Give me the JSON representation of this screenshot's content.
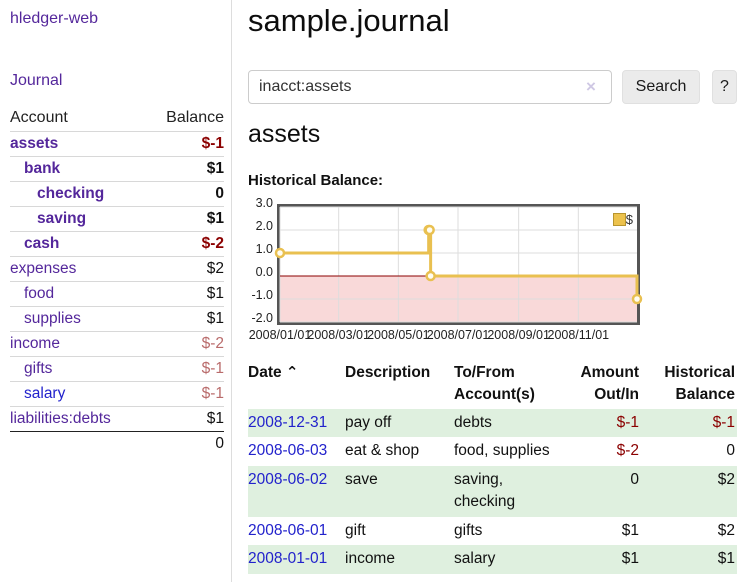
{
  "app": {
    "title": "hledger-web",
    "nav": {
      "journal": "Journal"
    }
  },
  "colors": {
    "purple_link": "#54279b",
    "blue_link": "#2222cc",
    "negative_strong": "#8b0000",
    "negative_muted": "#b96b6b",
    "row_stripe_green": "#dff0df",
    "chart_line_gold": "#e9c050",
    "chart_negative_fill": "#f9d9d9",
    "chart_zero_line": "#8b0000",
    "chart_border": "#555555"
  },
  "sidebar": {
    "headers": {
      "account": "Account",
      "balance": "Balance"
    },
    "accounts": [
      {
        "name": "assets",
        "balance": "$-1",
        "level": 1,
        "matched": true
      },
      {
        "name": "bank",
        "balance": "$1",
        "level": 2,
        "matched": true
      },
      {
        "name": "checking",
        "balance": "0",
        "level": 3,
        "matched": true
      },
      {
        "name": "saving",
        "balance": "$1",
        "level": 3,
        "matched": true
      },
      {
        "name": "cash",
        "balance": "$-2",
        "level": 2,
        "matched": true
      },
      {
        "name": "expenses",
        "balance": "$2",
        "level": 1,
        "matched": false
      },
      {
        "name": "food",
        "balance": "$1",
        "level": 2,
        "matched": false
      },
      {
        "name": "supplies",
        "balance": "$1",
        "level": 2,
        "matched": false
      },
      {
        "name": "income",
        "balance": "$-2",
        "level": 1,
        "matched": false
      },
      {
        "name": "gifts",
        "balance": "$-1",
        "level": 2,
        "matched": false
      },
      {
        "name": "salary",
        "balance": "$-1",
        "level": 2,
        "matched": false
      },
      {
        "name": "liabilities:debts",
        "balance": "$1",
        "level": 1,
        "matched": false
      }
    ],
    "total": "0"
  },
  "main": {
    "title": "sample.journal",
    "search": {
      "value": "inacct:assets",
      "clear_icon": "×",
      "button_label": "Search",
      "help_label": "?"
    },
    "account_heading": "assets",
    "chart_title": "Historical Balance:"
  },
  "chart_data": {
    "type": "line",
    "step": true,
    "title": "Historical Balance",
    "series": [
      {
        "name": "$",
        "points": [
          [
            "2008-01-01",
            1
          ],
          [
            "2008-06-01",
            2
          ],
          [
            "2008-06-02",
            2
          ],
          [
            "2008-06-03",
            0
          ],
          [
            "2008-12-31",
            -1
          ]
        ]
      }
    ],
    "xlim": [
      "2008-01-01",
      "2008-12-31"
    ],
    "ylim": [
      -2,
      3
    ],
    "x_ticks": [
      {
        "date": "2008-01-01",
        "label": "2008/01/01"
      },
      {
        "date": "2008-03-01",
        "label": "2008/03/01"
      },
      {
        "date": "2008-05-01",
        "label": "2008/05/01"
      },
      {
        "date": "2008-07-01",
        "label": "2008/07/01"
      },
      {
        "date": "2008-09-01",
        "label": "2008/09/01"
      },
      {
        "date": "2008-11-01",
        "label": "2008/11/01"
      }
    ],
    "y_ticks": [
      {
        "value": 3,
        "label": "3.0"
      },
      {
        "value": 2,
        "label": "2.0"
      },
      {
        "value": 1,
        "label": "1.0"
      },
      {
        "value": 0,
        "label": "0.0"
      },
      {
        "value": -1,
        "label": "-1.0"
      },
      {
        "value": -2,
        "label": "-2.0"
      }
    ],
    "legend": {
      "label": "$",
      "position": "top-right"
    },
    "grid": true
  },
  "register": {
    "headers": {
      "date": "Date",
      "sort_icon": "⌃",
      "description": "Description",
      "account": "To/From Account(s)",
      "amount": "Amount Out/In",
      "balance": "Historical Balance"
    },
    "rows": [
      {
        "date": "2008-12-31",
        "description": "pay off",
        "accounts": "debts",
        "amount": "$-1",
        "balance": "$-1"
      },
      {
        "date": "2008-06-03",
        "description": "eat & shop",
        "accounts": "food, supplies",
        "amount": "$-2",
        "balance": "0"
      },
      {
        "date": "2008-06-02",
        "description": "save",
        "accounts": "saving, checking",
        "amount": "0",
        "balance": "$2"
      },
      {
        "date": "2008-06-01",
        "description": "gift",
        "accounts": "gifts",
        "amount": "$1",
        "balance": "$2"
      },
      {
        "date": "2008-01-01",
        "description": "income",
        "accounts": "salary",
        "amount": "$1",
        "balance": "$1"
      }
    ]
  }
}
